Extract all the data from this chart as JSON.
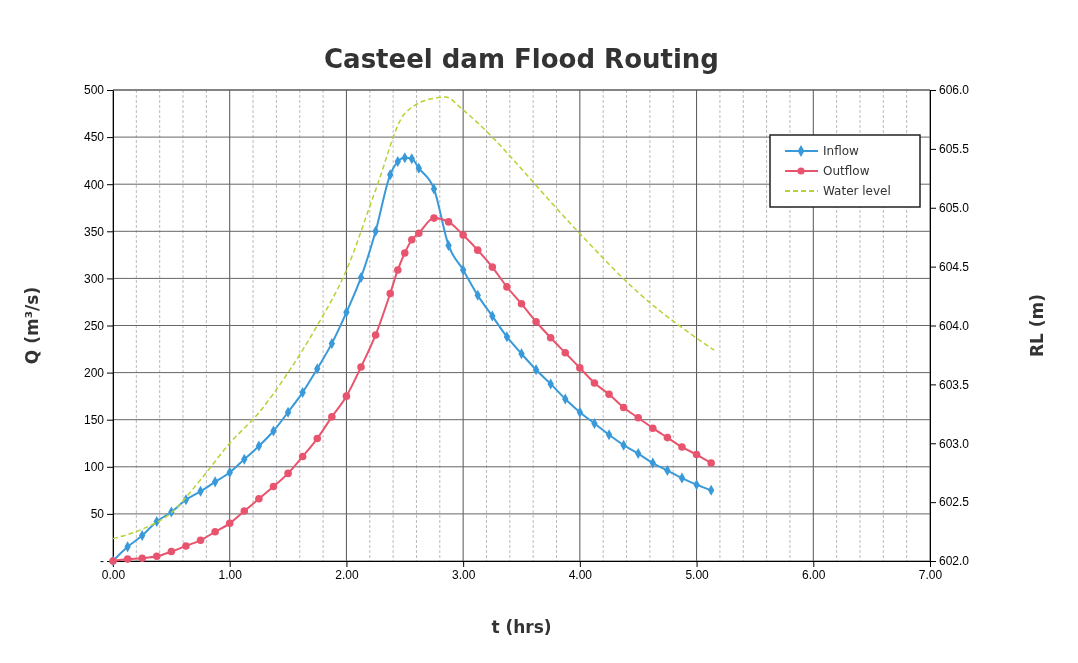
{
  "chart_data": {
    "type": "line",
    "title": "Casteel dam Flood Routing",
    "xlabel": "t (hrs)",
    "ylabel": "Q (m³/s)",
    "y2label": "RL (m)",
    "xlim": [
      0,
      7
    ],
    "xticks": [
      {
        "value": 0,
        "label": "0.00"
      },
      {
        "value": 1,
        "label": "1.00"
      },
      {
        "value": 2,
        "label": "2.00"
      },
      {
        "value": 3,
        "label": "3.00"
      },
      {
        "value": 4,
        "label": "4.00"
      },
      {
        "value": 5,
        "label": "5.00"
      },
      {
        "value": 6,
        "label": "6.00"
      },
      {
        "value": 7,
        "label": "7.00"
      }
    ],
    "ylim": [
      0,
      500
    ],
    "yticks": [
      {
        "value": 0,
        "label": "-"
      },
      50,
      100,
      150,
      200,
      250,
      300,
      350,
      400,
      450,
      500
    ],
    "y2lim": [
      602,
      606
    ],
    "y2ticks": [
      {
        "value": 602,
        "label": "602.0"
      },
      {
        "value": 602.5,
        "label": "602.5"
      },
      {
        "value": 603,
        "label": "603.0"
      },
      {
        "value": 603.5,
        "label": "603.5"
      },
      {
        "value": 604,
        "label": "604.0"
      },
      {
        "value": 604.5,
        "label": "604.5"
      },
      {
        "value": 605,
        "label": "605.0"
      },
      {
        "value": 605.5,
        "label": "605.5"
      },
      {
        "value": 606,
        "label": "606.0"
      }
    ],
    "grid": true,
    "legend": "top right",
    "series": [
      {
        "name": "Inflow",
        "color": "#3a9ad9",
        "marker": "diamond",
        "x": [
          0,
          0.125,
          0.25,
          0.375,
          0.5,
          0.625,
          0.75,
          0.875,
          1,
          1.125,
          1.25,
          1.375,
          1.5,
          1.625,
          1.75,
          1.875,
          2,
          2.125,
          2.25,
          2.375,
          2.44,
          2.5,
          2.56,
          2.62,
          2.75,
          2.875,
          3,
          3.125,
          3.25,
          3.375,
          3.5,
          3.625,
          3.75,
          3.875,
          4,
          4.125,
          4.25,
          4.375,
          4.5,
          4.625,
          4.75,
          4.875,
          5,
          5.125
        ],
        "values": [
          0,
          15,
          27,
          42,
          52,
          65,
          74,
          84,
          94,
          108,
          122,
          138,
          158,
          179,
          204,
          231,
          264,
          301,
          350,
          410,
          424,
          428,
          427,
          417,
          395,
          335,
          309,
          282,
          260,
          238,
          220,
          203,
          188,
          172,
          158,
          146,
          134,
          123,
          114,
          104,
          96,
          88,
          81,
          75
        ]
      },
      {
        "name": "Outflow",
        "color": "#e8546e",
        "marker": "circle",
        "x": [
          0,
          0.125,
          0.25,
          0.375,
          0.5,
          0.625,
          0.75,
          0.875,
          1,
          1.125,
          1.25,
          1.375,
          1.5,
          1.625,
          1.75,
          1.875,
          2,
          2.125,
          2.25,
          2.375,
          2.44,
          2.5,
          2.56,
          2.62,
          2.75,
          2.875,
          3,
          3.125,
          3.25,
          3.375,
          3.5,
          3.625,
          3.75,
          3.875,
          4,
          4.125,
          4.25,
          4.375,
          4.5,
          4.625,
          4.75,
          4.875,
          5,
          5.125
        ],
        "values": [
          0,
          2,
          3,
          5,
          10,
          16,
          22,
          31,
          40,
          53,
          66,
          79,
          93,
          111,
          130,
          153,
          175,
          206,
          240,
          284,
          309,
          327,
          341,
          348,
          364,
          360,
          346,
          330,
          312,
          291,
          273,
          254,
          237,
          221,
          205,
          189,
          177,
          163,
          152,
          141,
          131,
          121,
          113,
          104
        ]
      },
      {
        "name": "Water level",
        "color": "#b5d334",
        "axis": "y2",
        "marker": "none",
        "line_style": "dashed",
        "x": [
          0,
          0.25,
          0.5,
          0.75,
          1,
          1.25,
          1.5,
          1.75,
          2,
          2.25,
          2.5,
          2.75,
          2.85,
          3,
          3.25,
          3.5,
          3.75,
          4,
          4.5,
          5.15
        ],
        "values": [
          602.19,
          602.27,
          602.41,
          602.69,
          603,
          603.26,
          603.6,
          604,
          604.47,
          605.15,
          605.8,
          605.93,
          605.94,
          605.83,
          605.6,
          605.33,
          605.05,
          604.78,
          604.28,
          603.79
        ]
      }
    ]
  }
}
